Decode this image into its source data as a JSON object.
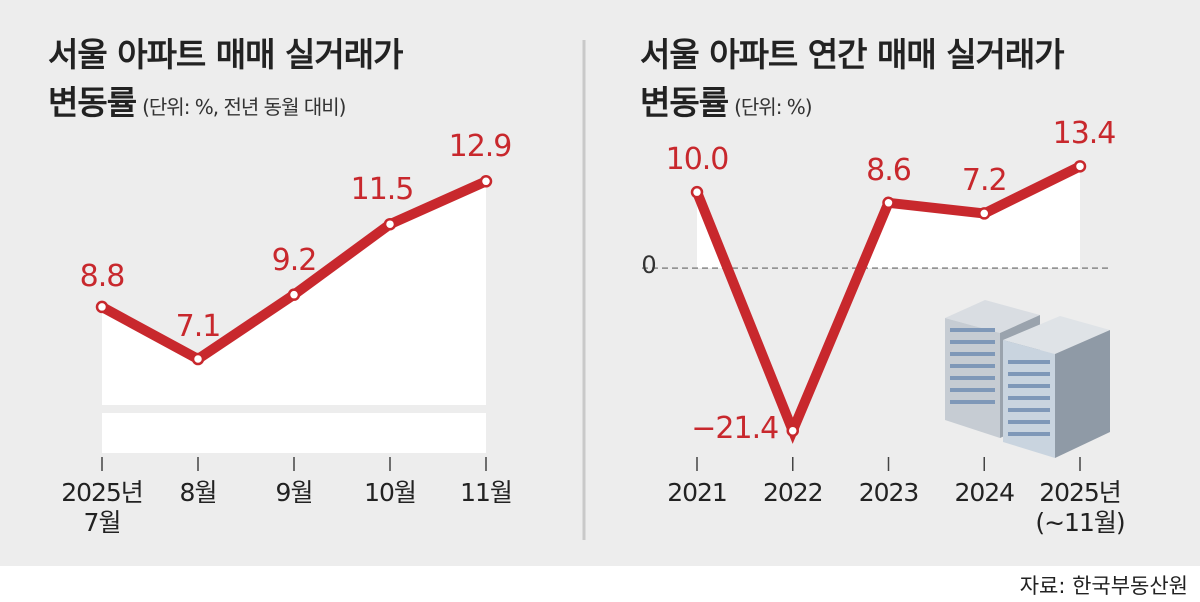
{
  "chart_data": [
    {
      "type": "line",
      "title": [
        "서울 아파트 매매 실거래가",
        "변동률"
      ],
      "unit": "(단위: %, 전년 동월 대비)",
      "categories": [
        "2025년\n7월",
        "8월",
        "9월",
        "10월",
        "11월"
      ],
      "values": [
        8.8,
        7.1,
        9.2,
        11.5,
        12.9
      ],
      "color": "#c8282d",
      "ylim": [
        5.6,
        14.9
      ]
    },
    {
      "type": "line",
      "title": [
        "서울 아파트 연간 매매 실거래가",
        "변동률"
      ],
      "unit": "(단위: %)",
      "categories": [
        "2021",
        "2022",
        "2023",
        "2024",
        "2025년\n(∼11월)"
      ],
      "values": [
        10.0,
        -21.4,
        8.6,
        7.2,
        13.4
      ],
      "value_labels": [
        "10.0",
        "−21.4",
        "8.6",
        "7.2",
        "13.4"
      ],
      "color": "#c8282d",
      "ylim": [
        -24.6,
        19.5
      ],
      "yticks": [
        0
      ]
    }
  ],
  "source": "자료: 한국부동산원"
}
